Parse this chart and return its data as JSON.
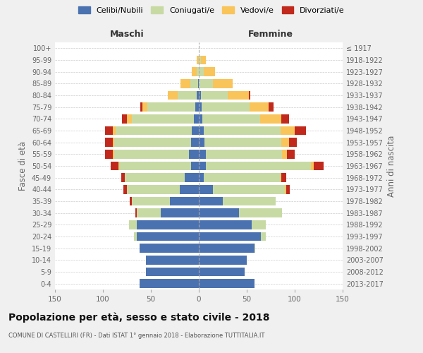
{
  "age_groups": [
    "0-4",
    "5-9",
    "10-14",
    "15-19",
    "20-24",
    "25-29",
    "30-34",
    "35-39",
    "40-44",
    "45-49",
    "50-54",
    "55-59",
    "60-64",
    "65-69",
    "70-74",
    "75-79",
    "80-84",
    "85-89",
    "90-94",
    "95-99",
    "100+"
  ],
  "birth_years": [
    "2013-2017",
    "2008-2012",
    "2003-2007",
    "1998-2002",
    "1993-1997",
    "1988-1992",
    "1983-1987",
    "1978-1982",
    "1973-1977",
    "1968-1972",
    "1963-1967",
    "1958-1962",
    "1953-1957",
    "1948-1952",
    "1943-1947",
    "1938-1942",
    "1933-1937",
    "1928-1932",
    "1923-1927",
    "1918-1922",
    "≤ 1917"
  ],
  "colors": {
    "celibi": "#4b72b0",
    "coniugati": "#c8daa4",
    "vedovi": "#f9c45a",
    "divorziati": "#c0291c"
  },
  "maschi": {
    "celibi": [
      62,
      55,
      55,
      62,
      65,
      65,
      40,
      30,
      20,
      15,
      8,
      10,
      8,
      7,
      5,
      4,
      2,
      1,
      0,
      0,
      0
    ],
    "coniugati": [
      0,
      0,
      0,
      0,
      3,
      8,
      25,
      40,
      55,
      62,
      75,
      78,
      80,
      80,
      65,
      50,
      20,
      8,
      2,
      0,
      0
    ],
    "vedovi": [
      0,
      0,
      0,
      0,
      0,
      0,
      0,
      0,
      0,
      0,
      1,
      2,
      2,
      3,
      5,
      5,
      10,
      10,
      5,
      2,
      0
    ],
    "divorziati": [
      0,
      0,
      0,
      0,
      0,
      0,
      1,
      2,
      4,
      4,
      8,
      8,
      8,
      8,
      5,
      2,
      0,
      0,
      0,
      0,
      0
    ]
  },
  "femmine": {
    "celibi": [
      58,
      48,
      50,
      58,
      65,
      55,
      42,
      25,
      15,
      5,
      7,
      7,
      6,
      5,
      4,
      3,
      2,
      0,
      0,
      0,
      0
    ],
    "coniugati": [
      0,
      0,
      0,
      1,
      5,
      15,
      45,
      55,
      75,
      80,
      110,
      80,
      80,
      80,
      60,
      50,
      28,
      15,
      5,
      2,
      0
    ],
    "vedovi": [
      0,
      0,
      0,
      0,
      0,
      0,
      0,
      0,
      1,
      1,
      3,
      5,
      8,
      15,
      22,
      20,
      22,
      20,
      12,
      5,
      0
    ],
    "divorziati": [
      0,
      0,
      0,
      0,
      0,
      0,
      0,
      0,
      4,
      5,
      10,
      8,
      8,
      12,
      8,
      5,
      2,
      0,
      0,
      0,
      0
    ]
  },
  "title": "Popolazione per età, sesso e stato civile - 2018",
  "subtitle": "COMUNE DI CASTELLIRI (FR) - Dati ISTAT 1° gennaio 2018 - Elaborazione TUTTITALIA.IT",
  "xlabel_left": "Maschi",
  "xlabel_right": "Femmine",
  "ylabel_left": "Fasce di età",
  "ylabel_right": "Anni di nascita",
  "xlim": 150,
  "legend_labels": [
    "Celibi/Nubili",
    "Coniugati/e",
    "Vedovi/e",
    "Divorziati/e"
  ],
  "bg_color": "#f0f0f0",
  "plot_bg_color": "#ffffff",
  "grid_color": "#cccccc",
  "bar_height": 0.75
}
